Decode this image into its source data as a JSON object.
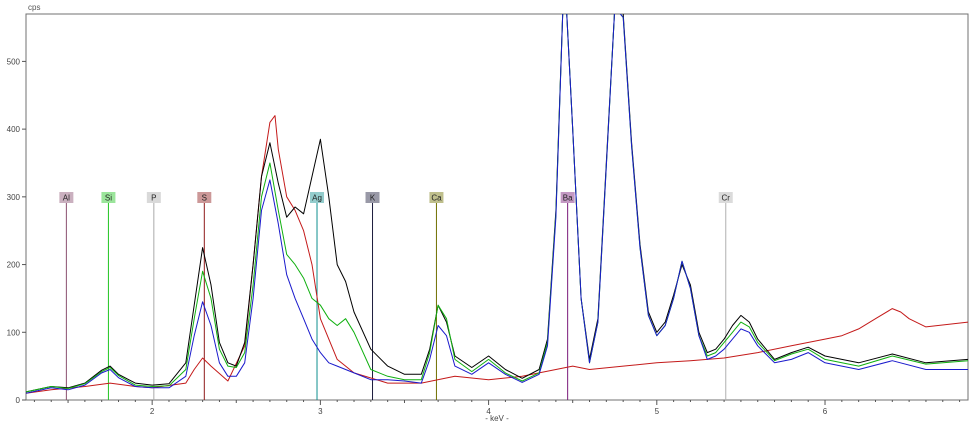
{
  "chart_data": {
    "type": "line",
    "ylabel": "cps",
    "xlabel": "- keV -",
    "xlim": [
      1.25,
      6.85
    ],
    "ylim": [
      0,
      570
    ],
    "xticks": [
      "2",
      "3",
      "4",
      "5",
      "6"
    ],
    "yticks": [
      "0",
      "100",
      "200",
      "300",
      "400",
      "500"
    ],
    "grid": false,
    "element_markers": [
      {
        "label": "Al",
        "energy": 1.49,
        "color": "#8a5070"
      },
      {
        "label": "Si",
        "energy": 1.74,
        "color": "#22c522"
      },
      {
        "label": "P",
        "energy": 2.01,
        "color": "#aaaaaa"
      },
      {
        "label": "S",
        "energy": 2.31,
        "color": "#8e1a1a"
      },
      {
        "label": "Ag",
        "energy": 2.98,
        "color": "#0f8f8f"
      },
      {
        "label": "K",
        "energy": 3.31,
        "color": "#1c1c3c"
      },
      {
        "label": "Ca",
        "energy": 3.69,
        "color": "#707000"
      },
      {
        "label": "Ba",
        "energy": 4.47,
        "color": "#7a1a7a"
      },
      {
        "label": "Cr",
        "energy": 5.41,
        "color": "#b0b0b0"
      }
    ],
    "series": [
      {
        "color": "#000000",
        "x": [
          1.25,
          1.4,
          1.5,
          1.6,
          1.7,
          1.75,
          1.8,
          1.9,
          2.0,
          2.1,
          2.2,
          2.25,
          2.3,
          2.35,
          2.4,
          2.45,
          2.5,
          2.55,
          2.6,
          2.65,
          2.7,
          2.75,
          2.8,
          2.85,
          2.9,
          2.95,
          3.0,
          3.05,
          3.1,
          3.15,
          3.2,
          3.3,
          3.4,
          3.5,
          3.6,
          3.65,
          3.7,
          3.75,
          3.8,
          3.9,
          4.0,
          4.1,
          4.2,
          4.3,
          4.35,
          4.4,
          4.45,
          4.5,
          4.55,
          4.6,
          4.65,
          4.7,
          4.75,
          4.8,
          4.85,
          4.9,
          4.95,
          5.0,
          5.05,
          5.1,
          5.15,
          5.2,
          5.25,
          5.3,
          5.35,
          5.4,
          5.45,
          5.5,
          5.55,
          5.6,
          5.7,
          5.8,
          5.9,
          6.0,
          6.2,
          6.4,
          6.6,
          6.85
        ],
        "y": [
          12,
          20,
          18,
          25,
          44,
          50,
          38,
          25,
          22,
          24,
          55,
          140,
          225,
          170,
          85,
          55,
          50,
          85,
          200,
          330,
          380,
          320,
          270,
          285,
          275,
          330,
          385,
          300,
          200,
          175,
          130,
          75,
          50,
          38,
          38,
          75,
          140,
          115,
          65,
          48,
          65,
          45,
          32,
          45,
          90,
          280,
          640,
          400,
          150,
          60,
          120,
          350,
          580,
          570,
          380,
          230,
          130,
          100,
          115,
          155,
          200,
          170,
          100,
          70,
          75,
          90,
          110,
          125,
          115,
          90,
          60,
          70,
          78,
          65,
          55,
          68,
          55,
          60
        ]
      },
      {
        "color": "#10b010",
        "x": [
          1.25,
          1.4,
          1.5,
          1.6,
          1.7,
          1.75,
          1.8,
          1.9,
          2.0,
          2.1,
          2.2,
          2.25,
          2.3,
          2.35,
          2.4,
          2.45,
          2.5,
          2.55,
          2.6,
          2.65,
          2.7,
          2.75,
          2.8,
          2.85,
          2.9,
          2.95,
          3.0,
          3.05,
          3.1,
          3.15,
          3.2,
          3.3,
          3.4,
          3.5,
          3.6,
          3.65,
          3.7,
          3.75,
          3.8,
          3.9,
          4.0,
          4.1,
          4.2,
          4.3,
          4.35,
          4.4,
          4.45,
          4.5,
          4.55,
          4.6,
          4.65,
          4.7,
          4.75,
          4.8,
          4.85,
          4.9,
          4.95,
          5.0,
          5.05,
          5.1,
          5.15,
          5.2,
          5.25,
          5.3,
          5.35,
          5.4,
          5.45,
          5.5,
          5.55,
          5.6,
          5.7,
          5.8,
          5.9,
          6.0,
          6.2,
          6.4,
          6.6,
          6.85
        ],
        "y": [
          12,
          20,
          17,
          24,
          42,
          48,
          36,
          22,
          20,
          21,
          45,
          120,
          190,
          150,
          75,
          50,
          48,
          70,
          170,
          300,
          350,
          280,
          215,
          200,
          180,
          150,
          140,
          120,
          110,
          120,
          100,
          45,
          35,
          30,
          30,
          70,
          140,
          120,
          60,
          42,
          60,
          40,
          28,
          40,
          85,
          275,
          640,
          400,
          150,
          55,
          115,
          345,
          580,
          565,
          375,
          225,
          125,
          95,
          110,
          150,
          205,
          165,
          95,
          65,
          70,
          85,
          100,
          115,
          108,
          85,
          58,
          68,
          75,
          60,
          50,
          65,
          53,
          58
        ]
      },
      {
        "color": "#1a1acc",
        "x": [
          1.25,
          1.4,
          1.5,
          1.6,
          1.7,
          1.75,
          1.8,
          1.9,
          2.0,
          2.1,
          2.2,
          2.25,
          2.3,
          2.35,
          2.4,
          2.45,
          2.5,
          2.55,
          2.6,
          2.65,
          2.7,
          2.75,
          2.8,
          2.85,
          2.9,
          2.95,
          3.0,
          3.05,
          3.1,
          3.15,
          3.2,
          3.3,
          3.4,
          3.5,
          3.6,
          3.65,
          3.7,
          3.75,
          3.8,
          3.9,
          4.0,
          4.1,
          4.2,
          4.3,
          4.35,
          4.4,
          4.45,
          4.5,
          4.55,
          4.6,
          4.65,
          4.7,
          4.75,
          4.8,
          4.85,
          4.9,
          4.95,
          5.0,
          5.05,
          5.1,
          5.15,
          5.2,
          5.25,
          5.3,
          5.35,
          5.4,
          5.45,
          5.5,
          5.55,
          5.6,
          5.7,
          5.8,
          5.9,
          6.0,
          6.2,
          6.4,
          6.6,
          6.85
        ],
        "y": [
          10,
          18,
          15,
          22,
          40,
          45,
          33,
          20,
          18,
          18,
          35,
          95,
          145,
          110,
          55,
          35,
          35,
          55,
          150,
          280,
          325,
          260,
          185,
          150,
          120,
          90,
          70,
          55,
          50,
          45,
          40,
          30,
          30,
          28,
          25,
          60,
          110,
          95,
          50,
          38,
          55,
          38,
          26,
          38,
          80,
          270,
          640,
          400,
          150,
          55,
          115,
          345,
          580,
          565,
          375,
          225,
          125,
          95,
          110,
          150,
          205,
          165,
          95,
          60,
          65,
          75,
          90,
          105,
          100,
          80,
          55,
          60,
          70,
          55,
          45,
          58,
          45,
          45
        ]
      },
      {
        "color": "#c41a1a",
        "x": [
          1.25,
          1.4,
          1.6,
          1.75,
          1.9,
          2.0,
          2.2,
          2.25,
          2.3,
          2.35,
          2.45,
          2.55,
          2.6,
          2.65,
          2.7,
          2.73,
          2.75,
          2.8,
          2.85,
          2.9,
          2.95,
          3.0,
          3.1,
          3.2,
          3.4,
          3.6,
          3.8,
          4.0,
          4.2,
          4.4,
          4.5,
          4.6,
          4.8,
          5.0,
          5.2,
          5.4,
          5.6,
          5.8,
          6.0,
          6.1,
          6.2,
          6.3,
          6.4,
          6.45,
          6.5,
          6.6,
          6.85
        ],
        "y": [
          10,
          15,
          20,
          25,
          20,
          18,
          25,
          45,
          62,
          50,
          28,
          80,
          200,
          330,
          410,
          420,
          370,
          300,
          280,
          250,
          200,
          120,
          60,
          40,
          25,
          25,
          35,
          30,
          35,
          45,
          50,
          45,
          50,
          55,
          58,
          62,
          70,
          80,
          90,
          95,
          105,
          120,
          135,
          130,
          120,
          108,
          115
        ]
      }
    ]
  }
}
